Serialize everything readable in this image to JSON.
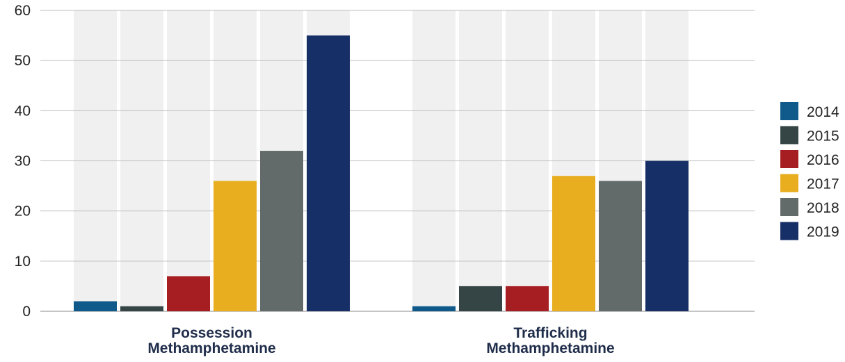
{
  "chart_data": {
    "type": "bar",
    "title": "",
    "xlabel": "",
    "ylabel": "",
    "ylim": [
      0,
      60
    ],
    "yticks": [
      "0",
      "10",
      "20",
      "30",
      "40",
      "50",
      "60"
    ],
    "grid": true,
    "legend_placement": "right",
    "categories": [
      [
        "Possession",
        "Methamphetamine"
      ],
      [
        "Trafficking",
        "Methamphetamine"
      ]
    ],
    "series": [
      {
        "name": "2014",
        "color": "#0f5a8a",
        "values": [
          2,
          1
        ]
      },
      {
        "name": "2015",
        "color": "#354444",
        "values": [
          1,
          5
        ]
      },
      {
        "name": "2016",
        "color": "#a61e22",
        "values": [
          7,
          5
        ]
      },
      {
        "name": "2017",
        "color": "#e8ae20",
        "values": [
          26,
          27
        ]
      },
      {
        "name": "2018",
        "color": "#626b6a",
        "values": [
          32,
          26
        ]
      },
      {
        "name": "2019",
        "color": "#162f66",
        "values": [
          55,
          30
        ]
      }
    ],
    "background_bar_color": "#f0f0f0"
  }
}
